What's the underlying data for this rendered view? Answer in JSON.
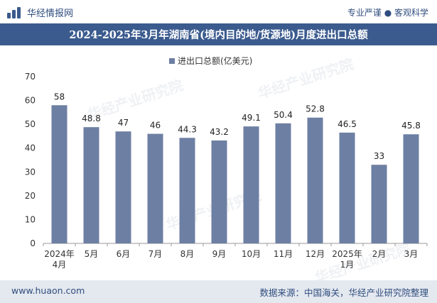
{
  "header": {
    "brand": "华经情报网",
    "slogan": "专业严谨 ● 客观科学"
  },
  "chart_data": {
    "type": "bar",
    "title": "2024-2025年3月年湖南省(境内目的地/货源地)月度进出口总额",
    "legend": "进出口总额(亿美元)",
    "categories": [
      "2024年\n4月",
      "5月",
      "6月",
      "7月",
      "8月",
      "9月",
      "10月",
      "11月",
      "12月",
      "2025年\n1月",
      "2月",
      "3月"
    ],
    "values": [
      58,
      48.8,
      47,
      46,
      44.3,
      43.2,
      49.1,
      50.4,
      52.8,
      46.5,
      33,
      45.8
    ],
    "value_labels": [
      "58",
      "48.8",
      "47",
      "46",
      "44.3",
      "43.2",
      "49.1",
      "50.4",
      "52.8",
      "46.5",
      "33",
      "45.8"
    ],
    "y_ticks": [
      "0",
      "10",
      "20",
      "30",
      "40",
      "50",
      "60",
      "70"
    ],
    "ylim": [
      0,
      70
    ],
    "bar_color": "#6d7fa3"
  },
  "footer": {
    "website": "www.huaon.com",
    "source": "数据来源：中国海关，华经产业研究院整理"
  },
  "watermark": {
    "text": "华经产业研究院"
  }
}
